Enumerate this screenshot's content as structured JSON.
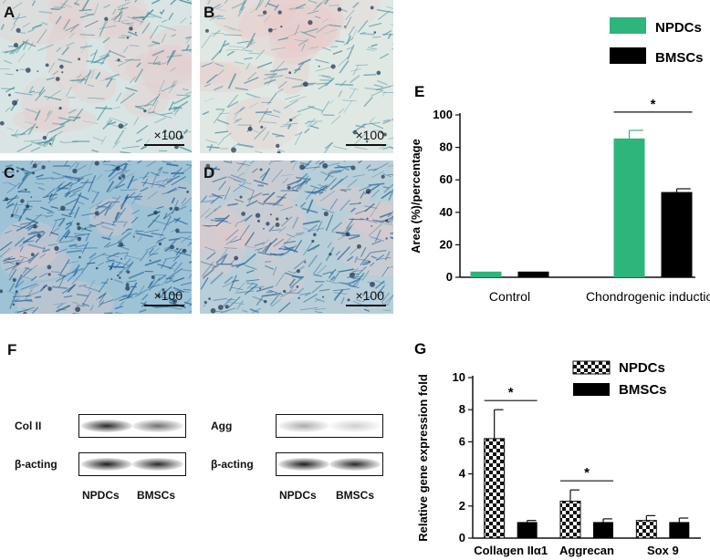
{
  "micrographs": [
    {
      "letter": "A",
      "magnification": "×100",
      "color_base": "#d9e5e4",
      "color_stain": "#3f8a96",
      "density": 0.25
    },
    {
      "letter": "B",
      "magnification": "×100",
      "color_base": "#e0e8e4",
      "color_stain": "#4e90a0",
      "density": 0.22
    },
    {
      "letter": "C",
      "magnification": "×100",
      "color_base": "#9fc3d6",
      "color_stain": "#1f5e95",
      "density": 0.75
    },
    {
      "letter": "D",
      "magnification": "×100",
      "color_base": "#b8cfd9",
      "color_stain": "#2a6a9a",
      "density": 0.55
    }
  ],
  "western_blot": {
    "panel_letter": "F",
    "left": {
      "label_top": "Col II",
      "label_bottom": "β-acting"
    },
    "right": {
      "label_top": "Agg",
      "label_bottom": "β-acting"
    },
    "lanes_left": [
      "NPDCs",
      "BMSCs"
    ],
    "lanes_right": [
      "NPDCs",
      "BMSCs"
    ],
    "band_intensity": {
      "col2": [
        0.9,
        0.6
      ],
      "actin_left": [
        0.95,
        0.9
      ],
      "agg": [
        0.35,
        0.2
      ],
      "actin_right": [
        0.95,
        0.9
      ]
    }
  },
  "chart_data": [
    {
      "panel_letter": "E",
      "type": "bar",
      "categories": [
        "Control",
        "Chondrogenic induction"
      ],
      "series": [
        {
          "name": "NPDCs",
          "values": [
            3.5,
            85.5
          ],
          "errors": [
            0,
            5
          ],
          "color": "#2db57c"
        },
        {
          "name": "BMSCs",
          "values": [
            3.5,
            52.5
          ],
          "errors": [
            0,
            2
          ],
          "color": "#000000"
        }
      ],
      "ylabel": "Area (%)/percentage",
      "ylim": [
        0,
        100
      ],
      "yticks": [
        "0",
        "20",
        "40",
        "60",
        "80",
        "100"
      ],
      "legend_position": "top-right",
      "significance": [
        {
          "category": "Chondrogenic induction",
          "label": "*"
        }
      ]
    },
    {
      "panel_letter": "G",
      "type": "bar",
      "categories": [
        "Collagen IIα1",
        "Aggrecan",
        "Sox 9"
      ],
      "series": [
        {
          "name": "NPDCs",
          "values": [
            6.2,
            2.3,
            1.1
          ],
          "errors": [
            1.8,
            0.7,
            0.3
          ],
          "pattern": "checker"
        },
        {
          "name": "BMSCs",
          "values": [
            1.0,
            1.0,
            1.0
          ],
          "errors": [
            0.1,
            0.2,
            0.25
          ],
          "color": "#000000"
        }
      ],
      "ylabel": "Relative gene expression fold",
      "ylim": [
        0,
        10
      ],
      "yticks": [
        "0",
        "2",
        "4",
        "6",
        "8",
        "10"
      ],
      "legend_position": "top-right",
      "significance": [
        {
          "category": "Collagen IIα1",
          "label": "*"
        },
        {
          "category": "Aggrecan",
          "label": "*"
        }
      ]
    }
  ]
}
